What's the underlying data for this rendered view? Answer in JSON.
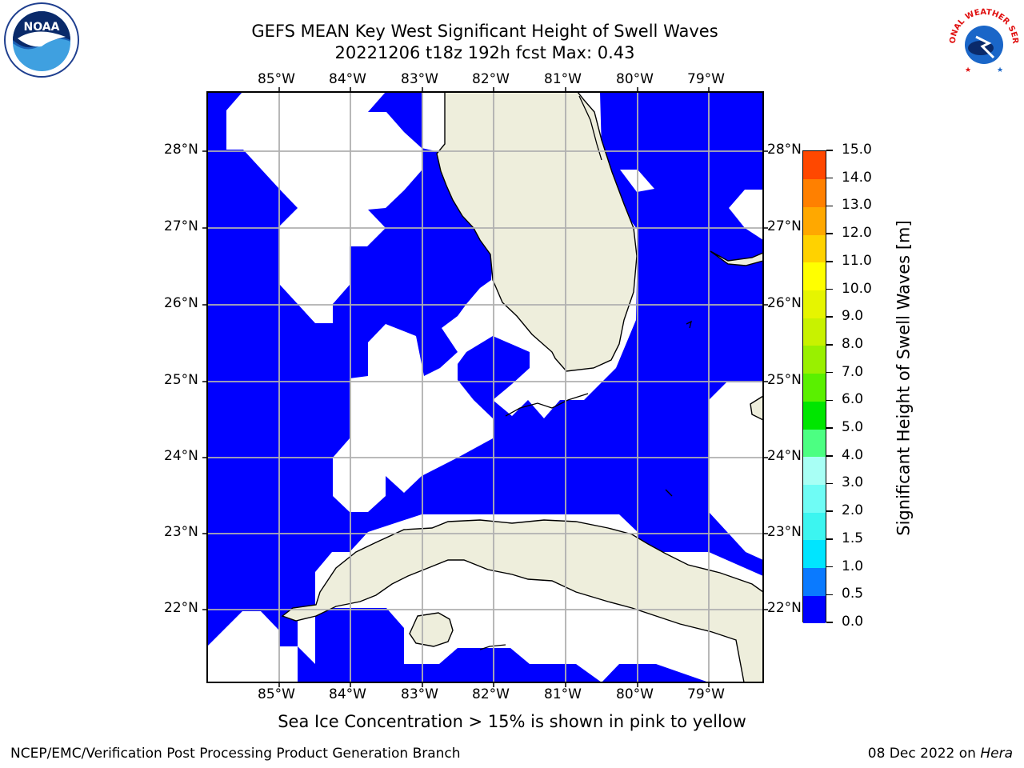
{
  "title_line1": "GEFS MEAN Key West Significant Height of Swell Waves",
  "title_line2": "20221206 t18z 192h fcst   Max: 0.43",
  "longitude_ticks": [
    "85°W",
    "84°W",
    "83°W",
    "82°W",
    "81°W",
    "80°W",
    "79°W"
  ],
  "latitude_ticks": [
    "28°N",
    "27°N",
    "26°N",
    "25°N",
    "24°N",
    "23°N",
    "22°N"
  ],
  "colorbar": {
    "title": "Significant Height of Swell Waves [m]",
    "labels": [
      "0.0",
      "0.5",
      "1.0",
      "1.5",
      "2.0",
      "3.0",
      "4.0",
      "5.0",
      "6.0",
      "7.0",
      "8.0",
      "9.0",
      "10.0",
      "11.0",
      "12.0",
      "13.0",
      "14.0",
      "15.0"
    ],
    "colors": [
      "#0000ff",
      "#0a7aff",
      "#00e5ff",
      "#3cf5f0",
      "#6ffcf5",
      "#a8fff5",
      "#4cff82",
      "#00e600",
      "#5af000",
      "#99f000",
      "#c8f200",
      "#e6f500",
      "#ffff00",
      "#ffd200",
      "#ffa800",
      "#ff8000",
      "#ff4800",
      "#ff0000"
    ]
  },
  "map": {
    "ocean_color": "#0000ff",
    "land_color": "#eeeedc",
    "nodata_color": "#ffffff",
    "max_value": 0.43
  },
  "logos": {
    "left": "NOAA",
    "right": "NATIONAL WEATHER SERVICE"
  },
  "note": "Sea Ice Concentration > 15% is shown in pink to yellow",
  "footer_left": "NCEP/EMC/Verification Post Processing Product Generation Branch",
  "footer_date": "08 Dec 2022 on ",
  "footer_host": "Hera"
}
